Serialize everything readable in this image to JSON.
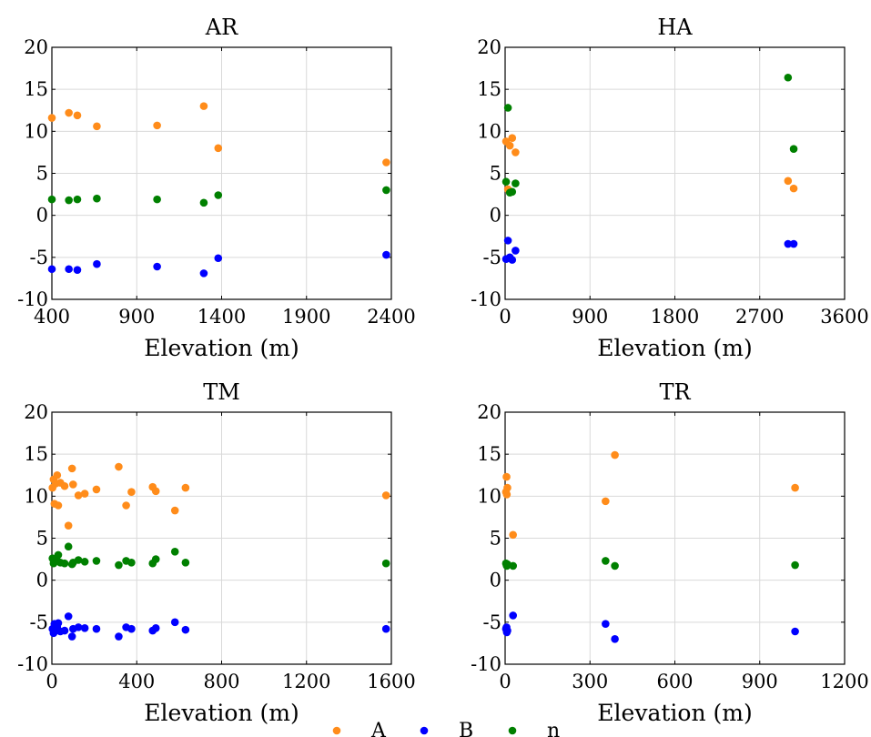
{
  "colors": {
    "A": "#ff8c1a",
    "B": "#0000ff",
    "n": "#008000",
    "grid": "#d9d9d9",
    "axis": "#000000"
  },
  "legend": {
    "placement": "bottom-center",
    "entries": [
      "A",
      "B",
      "n"
    ]
  },
  "chart_data": [
    {
      "type": "scatter",
      "title": "AR",
      "xlabel": "Elevation (m)",
      "ylabel": "",
      "xlim": [
        400,
        2400
      ],
      "ylim": [
        -10,
        20
      ],
      "xticks": [
        400,
        900,
        1400,
        1900,
        2400
      ],
      "yticks": [
        -10,
        -5,
        0,
        5,
        10,
        15,
        20
      ],
      "grid": true,
      "series": [
        {
          "name": "A",
          "x": [
            400,
            500,
            550,
            665,
            1020,
            1295,
            1380,
            2370
          ],
          "y": [
            11.6,
            12.2,
            11.9,
            10.6,
            10.7,
            13.0,
            8.0,
            6.3
          ]
        },
        {
          "name": "B",
          "x": [
            400,
            500,
            550,
            665,
            1020,
            1295,
            1380,
            2370
          ],
          "y": [
            -6.4,
            -6.4,
            -6.5,
            -5.8,
            -6.1,
            -6.9,
            -5.1,
            -4.7
          ]
        },
        {
          "name": "n",
          "x": [
            400,
            500,
            550,
            665,
            1020,
            1295,
            1380,
            2370
          ],
          "y": [
            1.9,
            1.8,
            1.9,
            2.0,
            1.9,
            1.5,
            2.4,
            3.0
          ]
        }
      ]
    },
    {
      "type": "scatter",
      "title": "HA",
      "xlabel": "Elevation (m)",
      "ylabel": "",
      "xlim": [
        0,
        3600
      ],
      "ylim": [
        -10,
        20
      ],
      "xticks": [
        0,
        900,
        1800,
        2700,
        3600
      ],
      "yticks": [
        -10,
        -5,
        0,
        5,
        10,
        15,
        20
      ],
      "grid": true,
      "series": [
        {
          "name": "A",
          "x": [
            10,
            30,
            50,
            75,
            110,
            3000,
            3060
          ],
          "y": [
            8.8,
            3.1,
            8.3,
            9.2,
            7.5,
            4.1,
            3.2
          ]
        },
        {
          "name": "B",
          "x": [
            10,
            30,
            50,
            75,
            110,
            3000,
            3060
          ],
          "y": [
            -5.2,
            -3.0,
            -5.0,
            -5.3,
            -4.2,
            -3.4,
            -3.4
          ]
        },
        {
          "name": "n",
          "x": [
            10,
            30,
            50,
            75,
            110,
            3000,
            3060
          ],
          "y": [
            4.0,
            12.8,
            2.7,
            2.8,
            3.8,
            16.4,
            7.9
          ]
        }
      ]
    },
    {
      "type": "scatter",
      "title": "TM",
      "xlabel": "Elevation (m)",
      "ylabel": "",
      "xlim": [
        0,
        1600
      ],
      "ylim": [
        -10,
        20
      ],
      "xticks": [
        0,
        400,
        800,
        1200,
        1600
      ],
      "yticks": [
        -10,
        -5,
        0,
        5,
        10,
        15,
        20
      ],
      "grid": true,
      "series": [
        {
          "name": "A",
          "x": [
            3,
            8,
            12,
            18,
            25,
            30,
            40,
            60,
            78,
            95,
            100,
            125,
            155,
            210,
            315,
            350,
            375,
            475,
            490,
            580,
            630,
            1575
          ],
          "y": [
            11.0,
            12.0,
            9.1,
            11.5,
            12.5,
            8.9,
            11.6,
            11.2,
            6.5,
            13.3,
            11.4,
            10.1,
            10.3,
            10.8,
            13.5,
            8.9,
            10.5,
            11.1,
            10.6,
            8.3,
            11.0,
            10.1
          ]
        },
        {
          "name": "B",
          "x": [
            3,
            8,
            12,
            18,
            25,
            30,
            40,
            60,
            78,
            95,
            100,
            125,
            155,
            210,
            315,
            350,
            375,
            475,
            490,
            580,
            630,
            1575
          ],
          "y": [
            -5.8,
            -6.3,
            -5.2,
            -6.0,
            -5.6,
            -5.1,
            -6.1,
            -6.0,
            -4.3,
            -6.7,
            -5.8,
            -5.6,
            -5.7,
            -5.8,
            -6.7,
            -5.6,
            -5.8,
            -6.0,
            -5.7,
            -5.0,
            -5.9,
            -5.8
          ]
        },
        {
          "name": "n",
          "x": [
            3,
            8,
            12,
            18,
            25,
            30,
            40,
            60,
            78,
            95,
            100,
            125,
            155,
            210,
            315,
            350,
            375,
            475,
            490,
            580,
            630,
            1575
          ],
          "y": [
            2.6,
            2.0,
            2.2,
            2.4,
            2.3,
            3.0,
            2.1,
            2.0,
            4.0,
            1.9,
            2.1,
            2.4,
            2.2,
            2.3,
            1.8,
            2.3,
            2.1,
            2.0,
            2.5,
            3.4,
            2.1,
            2.0
          ]
        }
      ]
    },
    {
      "type": "scatter",
      "title": "TR",
      "xlabel": "Elevation (m)",
      "ylabel": "",
      "xlim": [
        0,
        1200
      ],
      "ylim": [
        -10,
        20
      ],
      "xticks": [
        0,
        300,
        600,
        900,
        1200
      ],
      "yticks": [
        -10,
        -5,
        0,
        5,
        10,
        15,
        20
      ],
      "grid": true,
      "series": [
        {
          "name": "A",
          "x": [
            3,
            5,
            6,
            8,
            28,
            355,
            388,
            1025
          ],
          "y": [
            10.5,
            12.3,
            10.2,
            11.0,
            5.4,
            9.4,
            14.9,
            11.0
          ]
        },
        {
          "name": "B",
          "x": [
            3,
            5,
            6,
            8,
            28,
            355,
            388,
            1025
          ],
          "y": [
            -5.8,
            -5.6,
            -6.2,
            -6.0,
            -4.2,
            -5.2,
            -7.0,
            -6.1
          ]
        },
        {
          "name": "n",
          "x": [
            3,
            5,
            6,
            8,
            28,
            355,
            388,
            1025
          ],
          "y": [
            2.0,
            1.8,
            1.7,
            1.9,
            1.7,
            2.3,
            1.7,
            1.8
          ]
        }
      ]
    }
  ]
}
